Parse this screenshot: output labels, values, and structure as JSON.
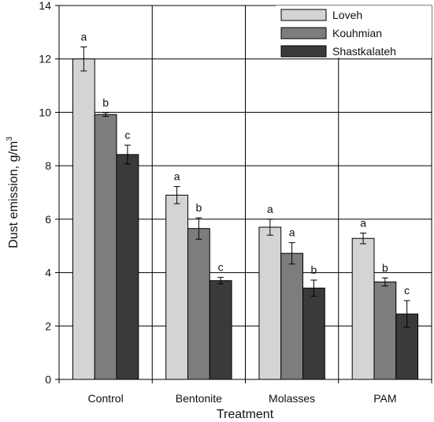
{
  "chart_data": {
    "type": "bar",
    "title": "",
    "xlabel": "Treatment",
    "ylabel_text": "Dust emission, g/m",
    "ylabel_superscript": "3",
    "ylim": [
      0,
      14
    ],
    "yticks": [
      0,
      2,
      4,
      6,
      8,
      10,
      12,
      14
    ],
    "grid": true,
    "legend_position": "top-right",
    "categories": [
      "Control",
      "Bentonite",
      "Molasses",
      "PAM"
    ],
    "series": [
      {
        "name": "Loveh",
        "color": "#d4d4d4",
        "values": [
          12.0,
          6.9,
          5.7,
          5.28
        ],
        "errors": [
          0.45,
          0.32,
          0.3,
          0.2
        ],
        "significance": [
          "a",
          "a",
          "a",
          "a"
        ]
      },
      {
        "name": "Kouhmian",
        "color": "#7d7d7d",
        "values": [
          9.92,
          5.65,
          4.72,
          3.65
        ],
        "errors": [
          0.07,
          0.4,
          0.4,
          0.15
        ],
        "significance": [
          "b",
          "b",
          "a",
          "b"
        ]
      },
      {
        "name": "Shastkalateh",
        "color": "#3a3a3a",
        "values": [
          8.42,
          3.7,
          3.42,
          2.45
        ],
        "errors": [
          0.35,
          0.12,
          0.3,
          0.5
        ],
        "significance": [
          "c",
          "c",
          "b",
          "c"
        ]
      }
    ]
  }
}
